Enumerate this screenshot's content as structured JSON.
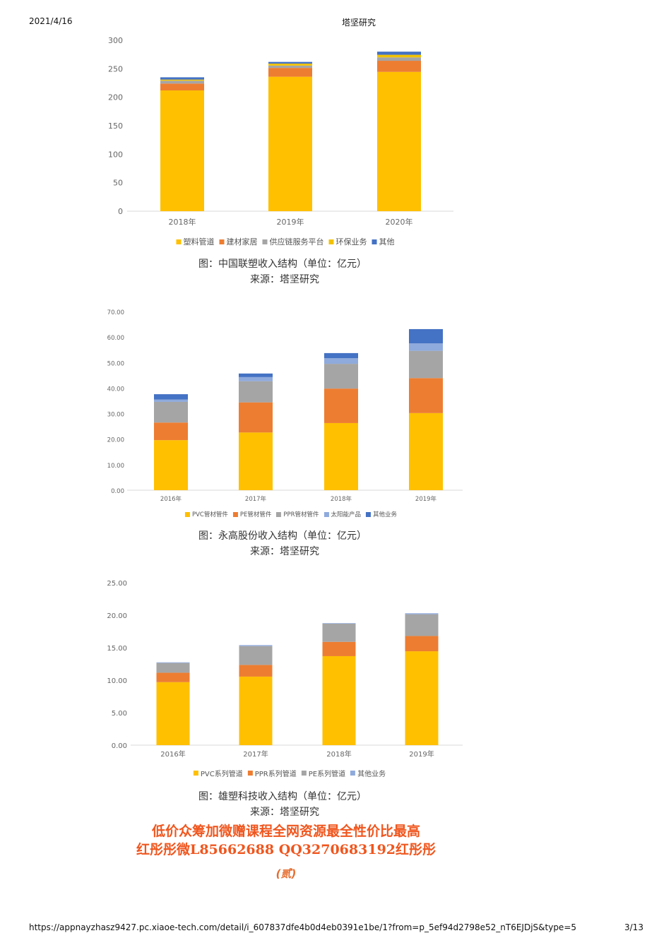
{
  "header": {
    "date": "2021/4/16",
    "title": "塔坚研究"
  },
  "footer": {
    "url": "https://appnayzhasz9427.pc.xiaoe-tech.com/detail/i_607837dfe4b0d4eb0391e1be/1?from=p_5ef94d2798e52_nT6EJDjS&type=5",
    "page": "3/13"
  },
  "section_marker": "(贰)",
  "watermark": {
    "line1": "低价众筹加微赠课程全网资源最全性价比最高",
    "line2": "红彤彤微L85662688 QQ3270683192红彤彤"
  },
  "chart_data": [
    {
      "type": "bar",
      "stacked": true,
      "caption": "图：中国联塑收入结构（单位：亿元）",
      "source": "来源：塔坚研究",
      "categories": [
        "2018年",
        "2019年",
        "2020年"
      ],
      "yticks": [
        "0",
        "50",
        "100",
        "150",
        "200",
        "250",
        "300"
      ],
      "ylim": [
        0,
        300
      ],
      "grid": false,
      "legend_position": "bottom",
      "series": [
        {
          "name": "塑料管道",
          "color": "#FFC000",
          "values": [
            212,
            236,
            244.5
          ]
        },
        {
          "name": "建材家居",
          "color": "#ED7D31",
          "values": [
            12,
            15.5,
            19.5
          ]
        },
        {
          "name": "供应链服务平台",
          "color": "#A5A5A5",
          "values": [
            5,
            4,
            6
          ]
        },
        {
          "name": "环保业务",
          "color": "#F2C200",
          "values": [
            2,
            3.5,
            4.5
          ]
        },
        {
          "name": "其他",
          "color": "#4472C4",
          "values": [
            4,
            3,
            5.5
          ]
        }
      ]
    },
    {
      "type": "bar",
      "stacked": true,
      "caption": "图：永高股份收入结构（单位：亿元）",
      "source": "来源：塔坚研究",
      "categories": [
        "2016年",
        "2017年",
        "2018年",
        "2019年"
      ],
      "yticks": [
        "0.00",
        "10.00",
        "20.00",
        "30.00",
        "40.00",
        "50.00",
        "60.00",
        "70.00"
      ],
      "ylim": [
        0,
        70
      ],
      "grid": false,
      "legend_position": "bottom",
      "series": [
        {
          "name": "PVC管材管件",
          "color": "#FFC000",
          "values": [
            19.6,
            22.6,
            26.3,
            30.2
          ]
        },
        {
          "name": "PE管材管件",
          "color": "#ED7D31",
          "values": [
            6.9,
            11.8,
            13.5,
            13.7
          ]
        },
        {
          "name": "PPR管材管件",
          "color": "#A5A5A5",
          "values": [
            8.1,
            8.3,
            9.7,
            10.7
          ]
        },
        {
          "name": "太阳能产品",
          "color": "#8FAADC",
          "values": [
            0.9,
            1.6,
            2.2,
            2.9
          ]
        },
        {
          "name": "其他业务",
          "color": "#4472C4",
          "values": [
            2.1,
            1.4,
            2.0,
            5.6
          ]
        }
      ]
    },
    {
      "type": "bar",
      "stacked": true,
      "caption": "图：雄塑科技收入结构（单位：亿元）",
      "source": "来源：塔坚研究",
      "categories": [
        "2016年",
        "2017年",
        "2018年",
        "2019年"
      ],
      "yticks": [
        "0.00",
        "5.00",
        "10.00",
        "15.00",
        "20.00",
        "25.00"
      ],
      "ylim": [
        0,
        25
      ],
      "grid": false,
      "legend_position": "bottom",
      "series": [
        {
          "name": "PVC系列管道",
          "color": "#FFC000",
          "values": [
            9.7,
            10.55,
            13.7,
            14.45
          ]
        },
        {
          "name": "PPR系列管道",
          "color": "#ED7D31",
          "values": [
            1.45,
            1.8,
            2.2,
            2.35
          ]
        },
        {
          "name": "PE系列管道",
          "color": "#A5A5A5",
          "values": [
            1.5,
            2.9,
            2.8,
            3.35
          ]
        },
        {
          "name": "其他业务",
          "color": "#8FAADC",
          "values": [
            0.1,
            0.15,
            0.08,
            0.15
          ]
        }
      ]
    }
  ]
}
